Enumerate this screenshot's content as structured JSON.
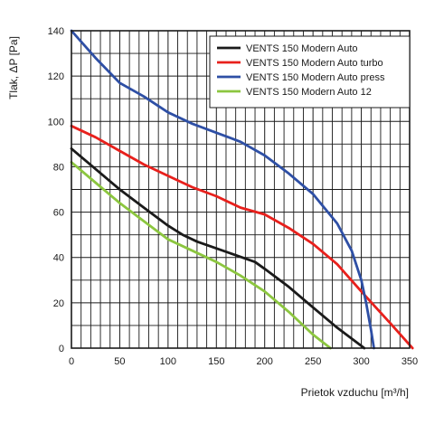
{
  "chart_data": {
    "type": "line",
    "xlabel": "Prietok vzduchu [m³/h]",
    "ylabel": "Tlak, ΔP [Pa]",
    "xlim": [
      0,
      350
    ],
    "ylim": [
      0,
      140
    ],
    "x_ticks": [
      "0",
      "50",
      "100",
      "150",
      "200",
      "250",
      "300",
      "350"
    ],
    "y_ticks": [
      "0",
      "20",
      "40",
      "60",
      "80",
      "100",
      "120",
      "140"
    ],
    "grid": true,
    "legend_position": "top-right",
    "series": [
      {
        "name": "VENTS 150 Modern Auto",
        "color": "#1a1a1a",
        "x": [
          0,
          25,
          50,
          75,
          100,
          115,
          130,
          150,
          170,
          190,
          200,
          225,
          250,
          275,
          300,
          303
        ],
        "y": [
          88,
          79,
          70,
          62,
          54,
          50,
          47,
          44,
          41,
          38,
          35,
          27,
          18,
          9,
          1,
          0
        ]
      },
      {
        "name": "VENTS 150 Modern Auto turbo",
        "color": "#e8201c",
        "x": [
          0,
          25,
          50,
          75,
          100,
          125,
          150,
          175,
          200,
          225,
          250,
          275,
          300,
          315,
          330,
          353
        ],
        "y": [
          98,
          93,
          87,
          81,
          76,
          71,
          67,
          62,
          59,
          53,
          46,
          37,
          25,
          18,
          11,
          0
        ]
      },
      {
        "name": "VENTS 150 Modern Auto press",
        "color": "#2e4fa5",
        "x": [
          0,
          25,
          50,
          75,
          100,
          125,
          150,
          175,
          200,
          225,
          250,
          275,
          290,
          300,
          305,
          310,
          313
        ],
        "y": [
          140,
          128,
          117,
          111,
          104,
          99,
          95,
          91,
          85,
          77,
          68,
          55,
          43,
          30,
          20,
          8,
          0
        ]
      },
      {
        "name": "VENTS 150 Modern Auto 12",
        "color": "#8cc63f",
        "x": [
          0,
          25,
          50,
          75,
          100,
          125,
          150,
          175,
          200,
          225,
          250,
          268
        ],
        "y": [
          82,
          73,
          64,
          56,
          48,
          43,
          38,
          32,
          25,
          16,
          6,
          0
        ]
      }
    ]
  }
}
